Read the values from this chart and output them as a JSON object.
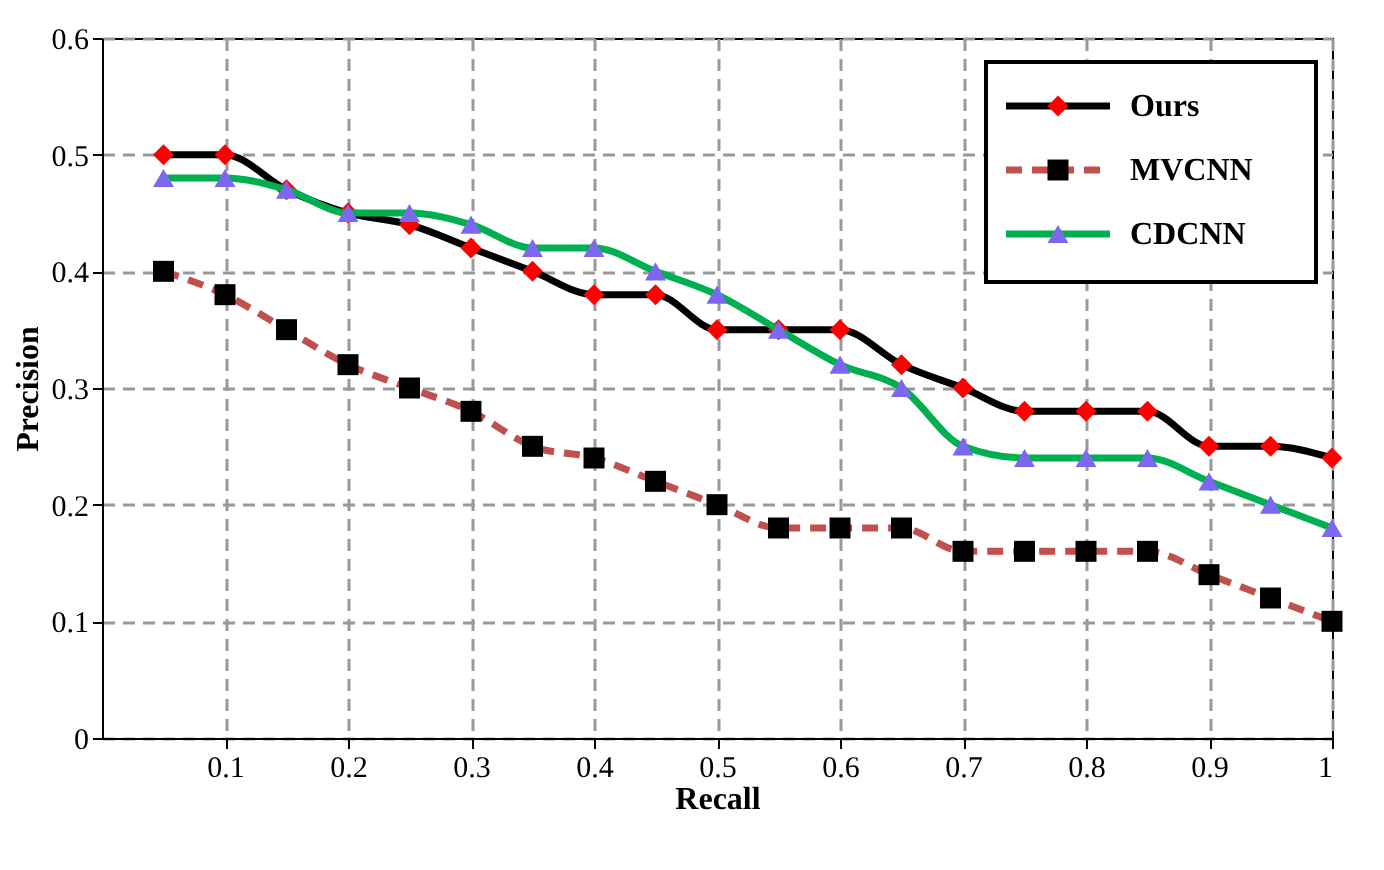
{
  "chart_data": {
    "type": "line",
    "xlabel": "Recall",
    "ylabel": "Precision",
    "x": [
      0.05,
      0.1,
      0.15,
      0.2,
      0.25,
      0.3,
      0.35,
      0.4,
      0.45,
      0.5,
      0.55,
      0.6,
      0.65,
      0.7,
      0.75,
      0.8,
      0.85,
      0.9,
      0.95,
      1
    ],
    "series": [
      {
        "name": "Ours",
        "color": "#000000",
        "marker": "diamond",
        "line_style": "solid",
        "colors": [
          "#ff0000",
          "#ff0000",
          "#ff0000",
          "#ff0000",
          "#ff0000",
          "#ff0000",
          "#ff0000",
          "#ff0000",
          "#ff0000",
          "#ff0000",
          "#ff0000",
          "#ff0000",
          "#ff0000",
          "#ff0000",
          "#ff0000",
          "#ff0000",
          "#ff0000",
          "#ff0000",
          "#ff0000",
          "#ff0000"
        ],
        "values": [
          0.5,
          0.5,
          0.47,
          0.45,
          0.44,
          0.42,
          0.4,
          0.38,
          0.38,
          0.35,
          0.35,
          0.35,
          0.32,
          0.3,
          0.28,
          0.28,
          0.28,
          0.25,
          0.25,
          0.24
        ]
      },
      {
        "name": "MVCNN",
        "color": "#c0504d",
        "marker": "square",
        "line_style": "dashed",
        "colors": [
          "#000000",
          "#000000",
          "#000000",
          "#000000",
          "#000000",
          "#000000",
          "#000000",
          "#000000",
          "#000000",
          "#000000",
          "#000000",
          "#000000",
          "#000000",
          "#000000",
          "#000000",
          "#000000",
          "#000000",
          "#000000",
          "#000000",
          "#000000"
        ],
        "values": [
          0.4,
          0.38,
          0.35,
          0.32,
          0.3,
          0.28,
          0.25,
          0.24,
          0.22,
          0.2,
          0.18,
          0.18,
          0.18,
          0.16,
          0.16,
          0.16,
          0.16,
          0.14,
          0.12,
          0.1
        ]
      },
      {
        "name": "CDCNN",
        "color": "#00b050",
        "marker": "triangle",
        "line_style": "solid",
        "colors": [
          "#7b68ee",
          "#7b68ee",
          "#7b68ee",
          "#7b68ee",
          "#7b68ee",
          "#7b68ee",
          "#7b68ee",
          "#7b68ee",
          "#7b68ee",
          "#7b68ee",
          "#7b68ee",
          "#7b68ee",
          "#7b68ee",
          "#7b68ee",
          "#7b68ee",
          "#7b68ee",
          "#7b68ee",
          "#7b68ee",
          "#7b68ee",
          "#7b68ee"
        ],
        "values": [
          0.48,
          0.48,
          0.47,
          0.45,
          0.45,
          0.44,
          0.42,
          0.42,
          0.4,
          0.38,
          0.35,
          0.32,
          0.3,
          0.25,
          0.24,
          0.24,
          0.24,
          0.22,
          0.2,
          0.18
        ]
      }
    ],
    "xlim": [
      0,
      1
    ],
    "xticks": [
      0.1,
      0.2,
      0.3,
      0.4,
      0.5,
      0.6,
      0.7,
      0.8,
      0.9,
      1
    ],
    "ylim": [
      0,
      0.6
    ],
    "yticks": [
      0,
      0.1,
      0.2,
      0.3,
      0.4,
      0.5,
      0.6
    ],
    "grid": true,
    "legend": "top right"
  }
}
